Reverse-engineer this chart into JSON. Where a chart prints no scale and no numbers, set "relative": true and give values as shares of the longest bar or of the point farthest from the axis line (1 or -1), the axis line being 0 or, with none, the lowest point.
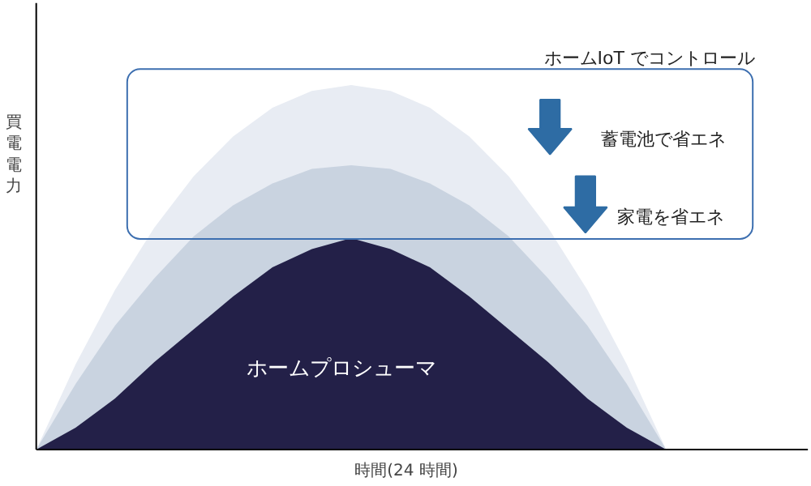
{
  "chart_data": {
    "type": "area",
    "relative": true,
    "xlabel": "時間(24 時間)",
    "ylabel": "買電電力",
    "categories": [
      null,
      null,
      null,
      null,
      null,
      null,
      null,
      null,
      null,
      null,
      null,
      null,
      null,
      null,
      null,
      null,
      null
    ],
    "series": [
      {
        "color": "#e8ecf3",
        "values": [
          0,
          0.234,
          0.438,
          0.609,
          0.75,
          0.859,
          0.938,
          0.984,
          1,
          0.984,
          0.938,
          0.859,
          0.75,
          0.609,
          0.438,
          0.234,
          0
        ]
      },
      {
        "color": "#c9d3e0",
        "values": [
          0,
          0.18,
          0.34,
          0.47,
          0.585,
          0.67,
          0.73,
          0.77,
          0.78,
          0.77,
          0.73,
          0.67,
          0.585,
          0.47,
          0.34,
          0.18,
          0
        ]
      },
      {
        "color": "#232048",
        "values": [
          0,
          0.06,
          0.14,
          0.24,
          0.33,
          0.42,
          0.5,
          0.55,
          0.58,
          0.55,
          0.5,
          0.42,
          0.33,
          0.24,
          0.14,
          0.06,
          0
        ]
      }
    ],
    "annotations": [
      "ホームIoT でコントロール",
      "蓄電池で省エネ",
      "家電を省エネ",
      "ホームプロシューマ"
    ],
    "grid": false
  }
}
